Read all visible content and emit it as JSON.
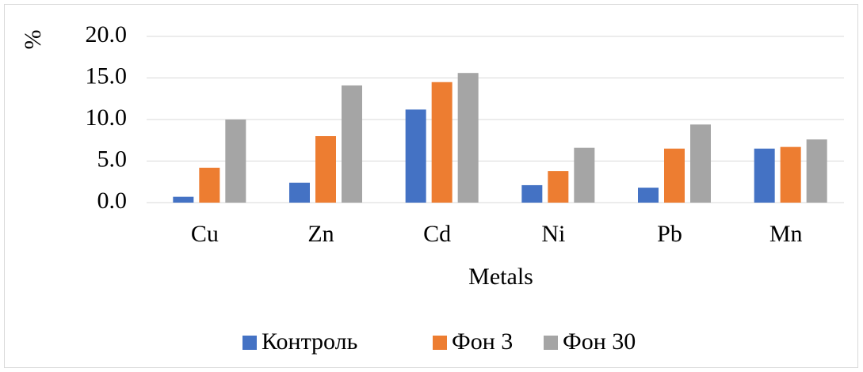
{
  "chart_data": {
    "type": "bar",
    "y_label": "%",
    "x_label": "Metals",
    "categories": [
      "Cu",
      "Zn",
      "Cd",
      "Ni",
      "Pb",
      "Mn"
    ],
    "series": [
      {
        "name": "Контроль",
        "color": "#4472c4",
        "values": [
          0.7,
          2.4,
          11.2,
          2.1,
          1.8,
          6.5
        ]
      },
      {
        "name": "Фон 3",
        "color": "#ed7d31",
        "values": [
          4.2,
          8.0,
          14.5,
          3.8,
          6.5,
          6.7
        ]
      },
      {
        "name": "Фон 30",
        "color": "#a5a5a5",
        "values": [
          10.0,
          14.1,
          15.6,
          6.6,
          9.4,
          7.6
        ]
      }
    ],
    "ylim": [
      0,
      20
    ],
    "yticks": [
      {
        "value": 0,
        "label": "0.0"
      },
      {
        "value": 5,
        "label": "5.0"
      },
      {
        "value": 10,
        "label": "10.0"
      },
      {
        "value": 15,
        "label": "15.0"
      },
      {
        "value": 20,
        "label": "20.0"
      }
    ],
    "grid": true,
    "legend": "bottom"
  }
}
